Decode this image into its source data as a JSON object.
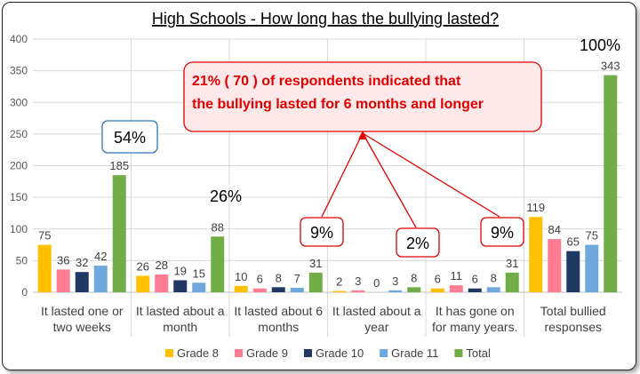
{
  "chart_data": {
    "type": "bar",
    "title": "High Schools - How long has the bullying lasted?",
    "categories": [
      [
        "It lasted one or",
        "two weeks"
      ],
      [
        "It lasted about a",
        "month"
      ],
      [
        "It lasted about 6",
        "months"
      ],
      [
        "It lasted about a",
        "year"
      ],
      [
        "It has gone on",
        "for many years."
      ],
      [
        "Total bullied",
        "responses"
      ]
    ],
    "series": [
      {
        "name": "Grade 8",
        "color": "#ffc000",
        "values": [
          75,
          26,
          10,
          2,
          6,
          119
        ]
      },
      {
        "name": "Grade 9",
        "color": "#ff7c93",
        "values": [
          36,
          28,
          6,
          3,
          11,
          84
        ]
      },
      {
        "name": "Grade 10",
        "color": "#1f3864",
        "values": [
          32,
          19,
          8,
          0,
          6,
          65
        ]
      },
      {
        "name": "Grade 11",
        "color": "#6fa8dc",
        "values": [
          42,
          15,
          7,
          3,
          8,
          75
        ]
      },
      {
        "name": "Total",
        "color": "#70ad47",
        "values": [
          185,
          88,
          31,
          8,
          31,
          343
        ]
      }
    ],
    "ylim": [
      0,
      400
    ],
    "yticks": [
      0,
      50,
      100,
      150,
      200,
      250,
      300,
      350,
      400
    ],
    "grid": true,
    "legend_position": "bottom",
    "annotations": {
      "pct_week": "54%",
      "pct_month": "26%",
      "pct_total": "100%",
      "pct_6months": "9%",
      "pct_year": "2%",
      "pct_years": "9%",
      "callout_line1": "21% ( 70 )  of respondents indicated that",
      "callout_line2": "the bullying lasted for 6 months and longer"
    }
  }
}
